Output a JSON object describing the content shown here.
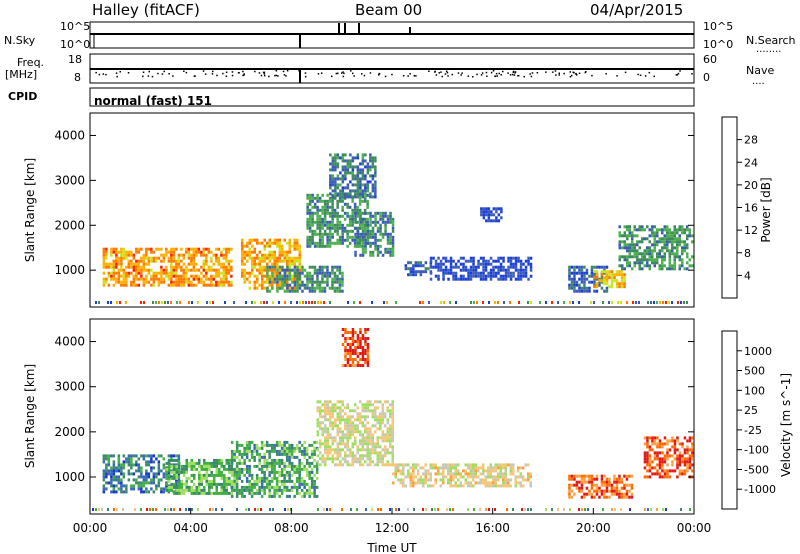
{
  "header": {
    "station": "Halley (fitACF)",
    "beam": "Beam 00",
    "date": "04/Apr/2015"
  },
  "side_labels": {
    "nsky": "N.Sky",
    "nsearch": "N.Search",
    "freq_line1": "Freq.",
    "freq_line2": "[MHz]",
    "nave": "Nave",
    "cpid": "CPID",
    "dots_nsearch": "........",
    "dots_nave": "...."
  },
  "cpid_text": "normal (fast) 151",
  "noise_axis": {
    "left_top": "10^5",
    "left_bottom": "10^0",
    "right_top": "10^5",
    "right_bottom": "10^0"
  },
  "freq_axis": {
    "left": [
      "18",
      "8"
    ],
    "right": [
      "60",
      "0"
    ]
  },
  "colors": {
    "power": [
      "#1a3fd6",
      "#3a5cb8",
      "#3d8a5a",
      "#4caf50",
      "#c8e620",
      "#ffb000",
      "#ff7a00",
      "#ff2000"
    ],
    "velocity": [
      "#e01818",
      "#ff6a00",
      "#ffa040",
      "#f5c878",
      "#c8c8b4",
      "#a0e060",
      "#40b040",
      "#3a8a6a",
      "#3868b8",
      "#1838c8"
    ]
  },
  "chart_data": [
    {
      "type": "heatmap",
      "name": "power-panel",
      "ylabel": "Slant Range [km]",
      "ylim": [
        180,
        4500
      ],
      "yticks": [
        "4000",
        "3000",
        "2000",
        "1000"
      ],
      "ytick_values": [
        4000,
        3000,
        2000,
        1000
      ],
      "colorbar_label": "Power [dB]",
      "colorbar_ticks": [
        "28",
        "24",
        "20",
        "16",
        "12",
        "8",
        "4"
      ],
      "regions": [
        {
          "t": [
            0.5,
            5.6
          ],
          "r": [
            650,
            1500
          ],
          "lvl": 0.75
        },
        {
          "t": [
            6.0,
            8.3
          ],
          "r": [
            600,
            1700
          ],
          "lvl": 0.72
        },
        {
          "t": [
            7.0,
            10.0
          ],
          "r": [
            500,
            1100
          ],
          "lvl": 0.3
        },
        {
          "t": [
            8.6,
            11.0
          ],
          "r": [
            1500,
            2700
          ],
          "lvl": 0.35
        },
        {
          "t": [
            9.5,
            11.3
          ],
          "r": [
            2600,
            3600
          ],
          "lvl": 0.25
        },
        {
          "t": [
            10.5,
            12.0
          ],
          "r": [
            1300,
            2300
          ],
          "lvl": 0.3
        },
        {
          "t": [
            12.5,
            13.5
          ],
          "r": [
            900,
            1200
          ],
          "lvl": 0.2
        },
        {
          "t": [
            13.5,
            17.5
          ],
          "r": [
            800,
            1300
          ],
          "lvl": 0.1
        },
        {
          "t": [
            15.5,
            16.3
          ],
          "r": [
            2100,
            2400
          ],
          "lvl": 0.1
        },
        {
          "t": [
            19.0,
            20.5
          ],
          "r": [
            500,
            1100
          ],
          "lvl": 0.2
        },
        {
          "t": [
            20.0,
            21.2
          ],
          "r": [
            600,
            1000
          ],
          "lvl": 0.65
        },
        {
          "t": [
            21.0,
            23.9
          ],
          "r": [
            1000,
            2000
          ],
          "lvl": 0.35
        }
      ]
    },
    {
      "type": "heatmap",
      "name": "velocity-panel",
      "ylabel": "Slant Range [km]",
      "ylim": [
        180,
        4500
      ],
      "yticks": [
        "4000",
        "3000",
        "2000",
        "1000"
      ],
      "ytick_values": [
        4000,
        3000,
        2000,
        1000
      ],
      "xlabel": "Time UT",
      "xticks": [
        "00:00",
        "04:00",
        "08:00",
        "12:00",
        "16:00",
        "20:00",
        "00:00"
      ],
      "xtick_values": [
        0,
        4,
        8,
        12,
        16,
        20,
        24
      ],
      "colorbar_label": "Velocity [m s^-1]",
      "colorbar_ticks": [
        "1000",
        "500",
        "100",
        "25",
        "-25",
        "-100",
        "-500",
        "-1000"
      ],
      "regions": [
        {
          "t": [
            0.5,
            3.5
          ],
          "r": [
            650,
            1500
          ],
          "lvl": 0.8
        },
        {
          "t": [
            3.0,
            5.6
          ],
          "r": [
            650,
            1400
          ],
          "lvl": 0.65
        },
        {
          "t": [
            5.6,
            9.0
          ],
          "r": [
            600,
            1800
          ],
          "lvl": 0.68
        },
        {
          "t": [
            9.0,
            12.0
          ],
          "r": [
            1300,
            2700
          ],
          "lvl": 0.45
        },
        {
          "t": [
            10.0,
            11.0
          ],
          "r": [
            3500,
            4300
          ],
          "lvl": 0.1
        },
        {
          "t": [
            12.0,
            17.5
          ],
          "r": [
            800,
            1300
          ],
          "lvl": 0.42
        },
        {
          "t": [
            19.0,
            21.5
          ],
          "r": [
            550,
            1050
          ],
          "lvl": 0.15
        },
        {
          "t": [
            22.0,
            23.9
          ],
          "r": [
            1000,
            1900
          ],
          "lvl": 0.12
        }
      ]
    }
  ]
}
